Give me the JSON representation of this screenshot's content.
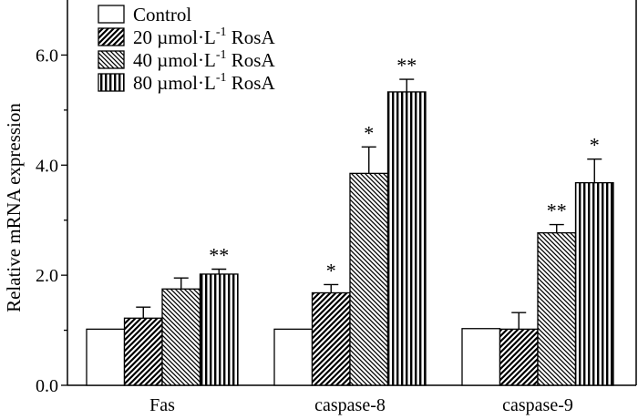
{
  "chart_data": {
    "type": "bar",
    "title": "",
    "xlabel": "",
    "ylabel": "Relative mRNA expression",
    "ylim": [
      0,
      7
    ],
    "yticks": [
      "0.0",
      "2.0",
      "4.0",
      "6.0"
    ],
    "grid": false,
    "legend_position": "top-left",
    "categories": [
      "Fas",
      "caspase-8",
      "caspase-9"
    ],
    "series": [
      {
        "name": "Control",
        "legend": {
          "prefix": "Control",
          "sup": "",
          "suffix": ""
        },
        "pattern": "none",
        "values": [
          1.02,
          1.02,
          1.03
        ],
        "errors": [
          0,
          0,
          0
        ],
        "significance": [
          "",
          "",
          ""
        ]
      },
      {
        "name": "20 µmol·L-1 RosA",
        "legend": {
          "prefix": "20 µmol·L",
          "sup": "-1",
          "suffix": " RosA"
        },
        "pattern": "diag-right",
        "values": [
          1.22,
          1.68,
          1.02
        ],
        "errors": [
          0.2,
          0.15,
          0.3
        ],
        "significance": [
          "",
          "*",
          ""
        ]
      },
      {
        "name": "40 µmol·L-1 RosA",
        "legend": {
          "prefix": "40 µmol·L",
          "sup": "-1",
          "suffix": " RosA"
        },
        "pattern": "diag-left",
        "values": [
          1.75,
          3.85,
          2.77
        ],
        "errors": [
          0.2,
          0.48,
          0.15
        ],
        "significance": [
          "",
          "*",
          "**"
        ]
      },
      {
        "name": "80 µmol·L-1 RosA",
        "legend": {
          "prefix": "80 µmol·L",
          "sup": "-1",
          "suffix": " RosA"
        },
        "pattern": "vertical",
        "values": [
          2.02,
          5.33,
          3.68
        ],
        "errors": [
          0.09,
          0.23,
          0.43
        ],
        "significance": [
          "**",
          "**",
          "*"
        ]
      }
    ]
  }
}
